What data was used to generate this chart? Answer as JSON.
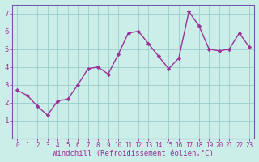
{
  "x": [
    0,
    1,
    2,
    3,
    4,
    5,
    6,
    7,
    8,
    9,
    10,
    11,
    12,
    13,
    14,
    15,
    16,
    17,
    18,
    19,
    20,
    21,
    22,
    23
  ],
  "y": [
    2.7,
    2.4,
    1.8,
    1.3,
    2.1,
    2.2,
    3.0,
    3.9,
    4.0,
    3.6,
    4.7,
    5.9,
    6.0,
    5.3,
    4.6,
    3.9,
    4.5,
    7.1,
    6.3,
    5.0,
    4.9,
    5.0,
    5.9,
    5.1
  ],
  "line_color": "#993399",
  "marker": "D",
  "marker_size": 2.2,
  "background_color": "#cceee8",
  "grid_color": "#99cccc",
  "xlabel": "Windchill (Refroidissement éolien,°C)",
  "xlabel_color": "#993399",
  "tick_color": "#993399",
  "ylim": [
    0,
    7.5
  ],
  "xlim": [
    -0.5,
    23.5
  ],
  "yticks": [
    1,
    2,
    3,
    4,
    5,
    6,
    7
  ],
  "xticks": [
    0,
    1,
    2,
    3,
    4,
    5,
    6,
    7,
    8,
    9,
    10,
    11,
    12,
    13,
    14,
    15,
    16,
    17,
    18,
    19,
    20,
    21,
    22,
    23
  ],
  "spine_color": "#7755aa",
  "linewidth": 1.0,
  "tick_fontsize": 5.5,
  "ytick_fontsize": 6.5,
  "xlabel_fontsize": 6.5
}
